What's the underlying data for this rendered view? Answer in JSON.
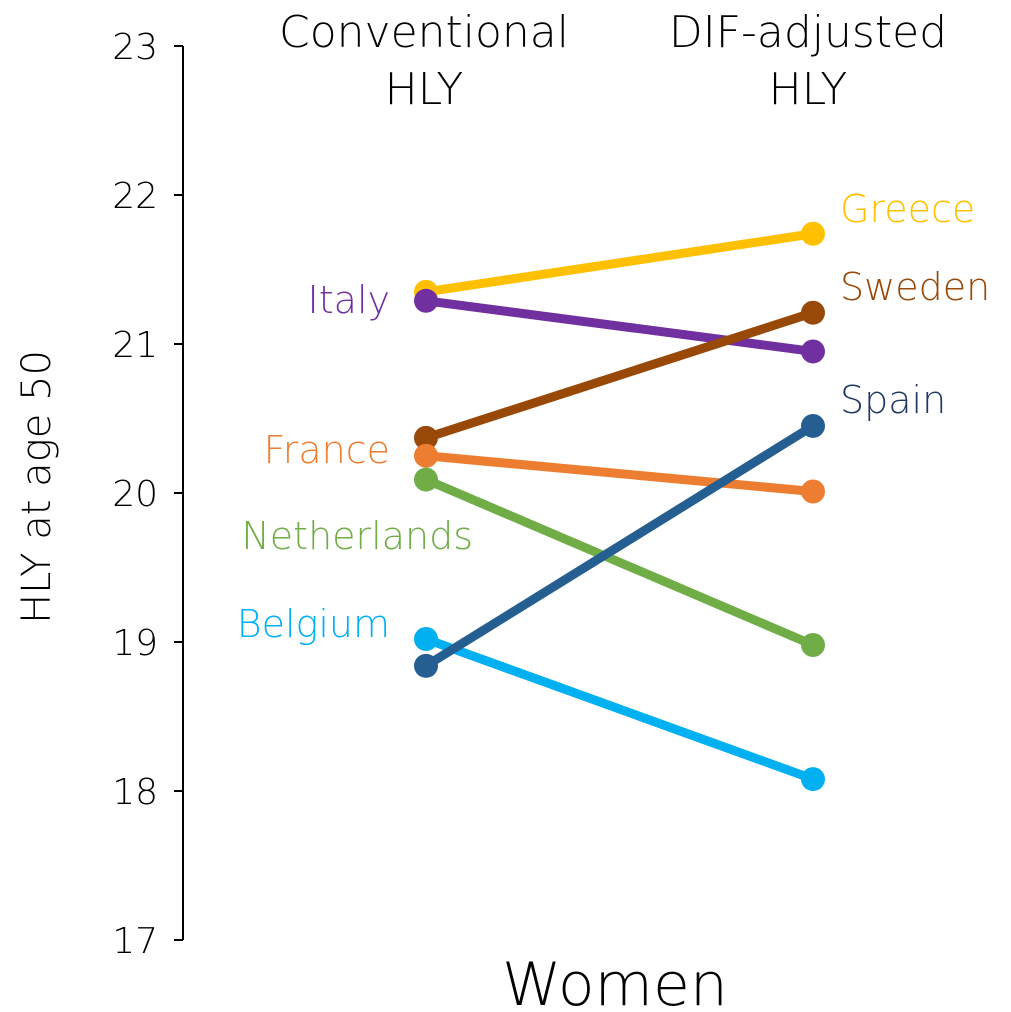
{
  "chart_data": {
    "type": "line",
    "xlabel": "Women",
    "ylabel": "HLY at age 50",
    "ylim": [
      17,
      23
    ],
    "yticks": [
      17,
      18,
      19,
      20,
      21,
      22,
      23
    ],
    "categories": [
      "Conventional HLY",
      "DIF-adjusted HLY"
    ],
    "category_lines": [
      [
        "Conventional",
        "HLY"
      ],
      [
        "DIF-adjusted",
        "HLY"
      ]
    ],
    "grid": false,
    "legend": "direct labels",
    "series": [
      {
        "name": "Greece",
        "values": [
          21.35,
          21.74
        ],
        "color": "#FFC000",
        "label_side": "right"
      },
      {
        "name": "Italy",
        "values": [
          21.29,
          20.95
        ],
        "color": "#7030A0",
        "label_side": "left"
      },
      {
        "name": "Sweden",
        "values": [
          20.37,
          21.21
        ],
        "color": "#984807",
        "label_side": "right"
      },
      {
        "name": "France",
        "values": [
          20.25,
          20.01
        ],
        "color": "#ED7D31",
        "label_side": "left"
      },
      {
        "name": "Netherlands",
        "values": [
          20.09,
          18.98
        ],
        "color": "#70AD47",
        "label_side": "left"
      },
      {
        "name": "Belgium",
        "values": [
          19.02,
          18.08
        ],
        "color": "#00B0F0",
        "label_side": "left"
      },
      {
        "name": "Spain",
        "values": [
          18.84,
          20.45
        ],
        "color": "#255E91",
        "label_side": "right",
        "label_color": "#1F3864"
      }
    ]
  }
}
